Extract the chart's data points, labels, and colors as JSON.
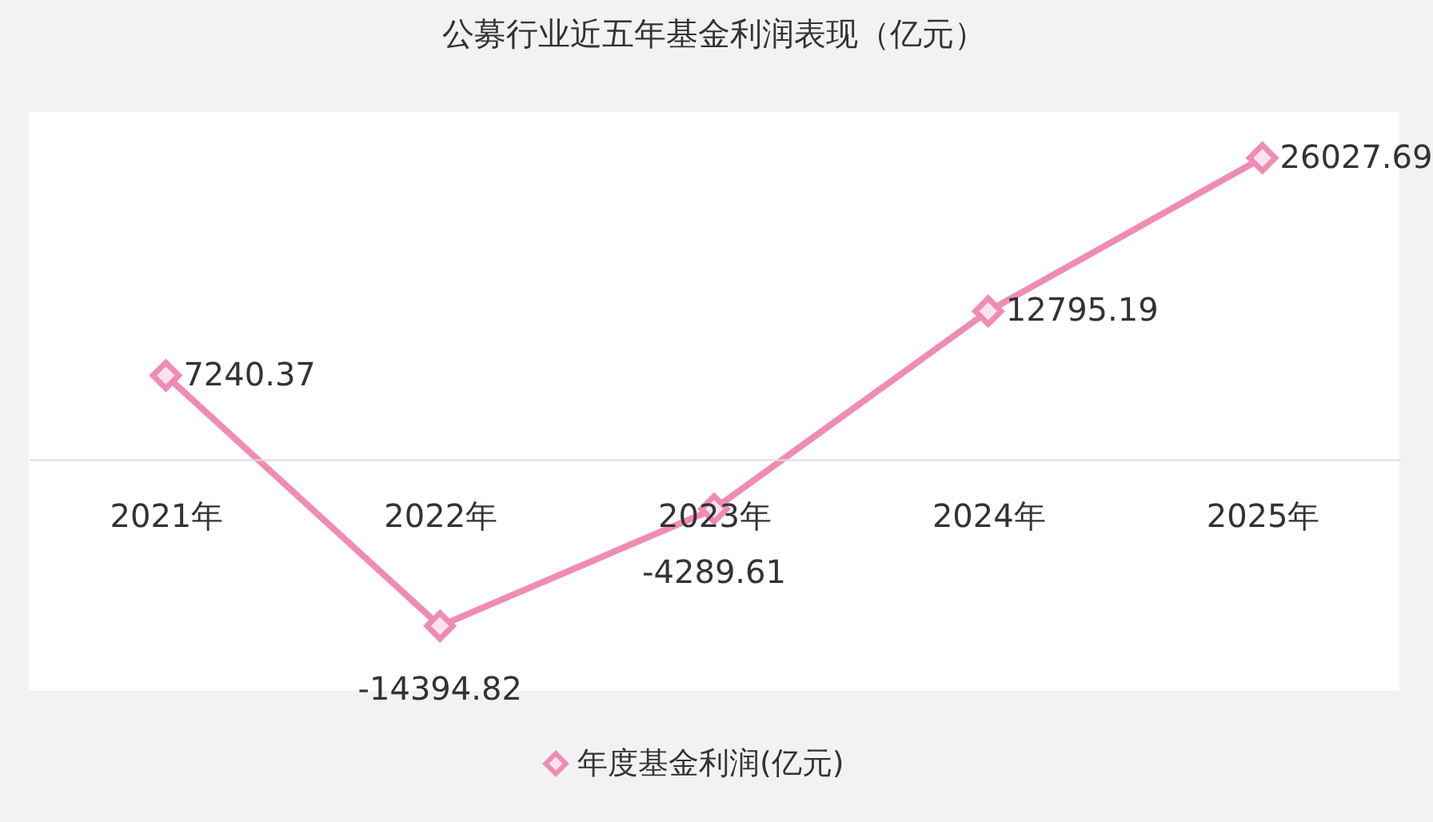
{
  "chart_data": {
    "type": "line",
    "title": "公募行业近五年基金利润表现（亿元）",
    "categories": [
      "2021年",
      "2022年",
      "2023年",
      "2024年",
      "2025年"
    ],
    "series": [
      {
        "name": "年度基金利润(亿元)",
        "color": "#ef8cb5",
        "values": [
          7240.37,
          -14394.82,
          -4289.61,
          12795.19,
          26027.69
        ]
      }
    ],
    "ylim": [
      -20000,
      30000
    ],
    "data_labels": true,
    "marker": "diamond",
    "legend": "bottom"
  }
}
